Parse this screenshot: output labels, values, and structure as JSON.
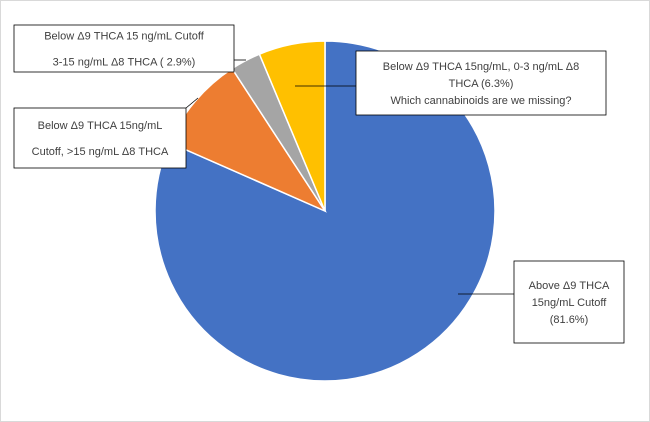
{
  "chart_data": {
    "type": "pie",
    "title": "",
    "slices": [
      {
        "value": 81.6,
        "color": "#4472C4",
        "label_lines": [
          "Above Δ9 THCA",
          "15ng/mL Cutoff",
          "(81.6%)"
        ]
      },
      {
        "value": 9.2,
        "color": "#ED7D31",
        "label_lines": [
          "Below Δ9 THCA 15ng/mL",
          "Cutoff, >15 ng/mL Δ8 THCA"
        ]
      },
      {
        "value": 2.9,
        "color": "#A5A5A5",
        "label_lines": [
          "Below Δ9 THCA 15 ng/mL Cutoff",
          "3-15 ng/mL Δ8 THCA ( 2.9%)"
        ]
      },
      {
        "value": 6.3,
        "color": "#FFC000",
        "label_lines": [
          "Below Δ9 THCA 15ng/mL, 0-3 ng/mL Δ8",
          "THCA (6.3%)",
          "Which cannabinoids are we missing?"
        ]
      }
    ],
    "start_angle_deg": 0,
    "direction": "clockwise",
    "legend": "none"
  }
}
